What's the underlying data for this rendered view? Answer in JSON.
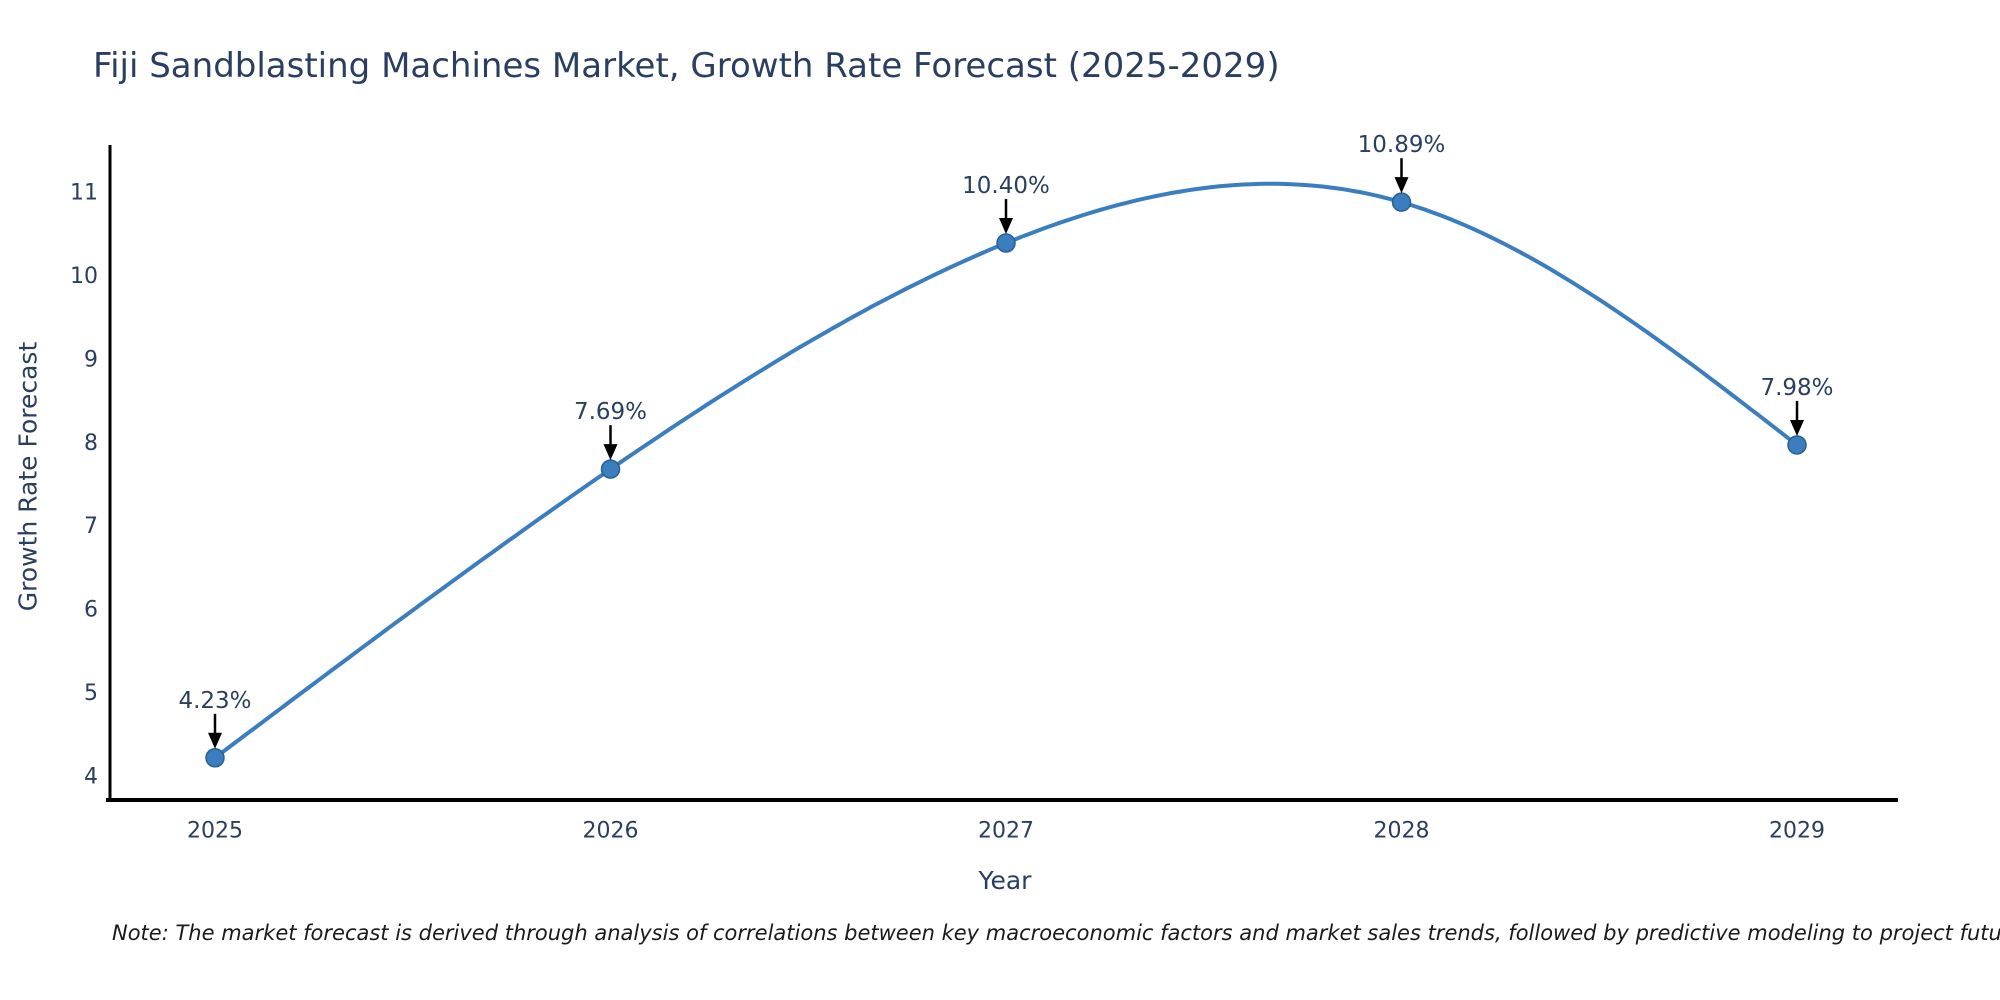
{
  "title": "Fiji Sandblasting Machines Market, Growth Rate Forecast (2025-2029)",
  "footnote": "Note: The market forecast is derived through analysis of correlations between key macroeconomic factors and market sales trends, followed by predictive modeling to project future sales.",
  "chart_data": {
    "type": "line",
    "title": "Fiji Sandblasting Machines Market, Growth Rate Forecast (2025-2029)",
    "xlabel": "Year",
    "ylabel": "Growth Rate Forecast",
    "categories": [
      "2025",
      "2026",
      "2027",
      "2028",
      "2029"
    ],
    "values": [
      4.23,
      7.69,
      10.4,
      10.89,
      7.98
    ],
    "point_labels": [
      "4.23%",
      "7.69%",
      "10.40%",
      "10.89%",
      "7.98%"
    ],
    "yticks": [
      "4",
      "5",
      "6",
      "7",
      "8",
      "9",
      "10",
      "11"
    ],
    "ytick_values": [
      4,
      5,
      6,
      7,
      8,
      9,
      10,
      11
    ],
    "ylim": [
      3.7,
      11.57
    ],
    "curve": "natural-cubic-spline",
    "grid": false,
    "legend": false,
    "colors": {
      "line": "#3a7ebf",
      "marker_fill": "#3a7ebf",
      "marker_edge": "#2a5f8f",
      "axis": "#000000",
      "text": "#2a3f5f",
      "annotation_arrow": "#000000",
      "background": "#ffffff"
    }
  }
}
